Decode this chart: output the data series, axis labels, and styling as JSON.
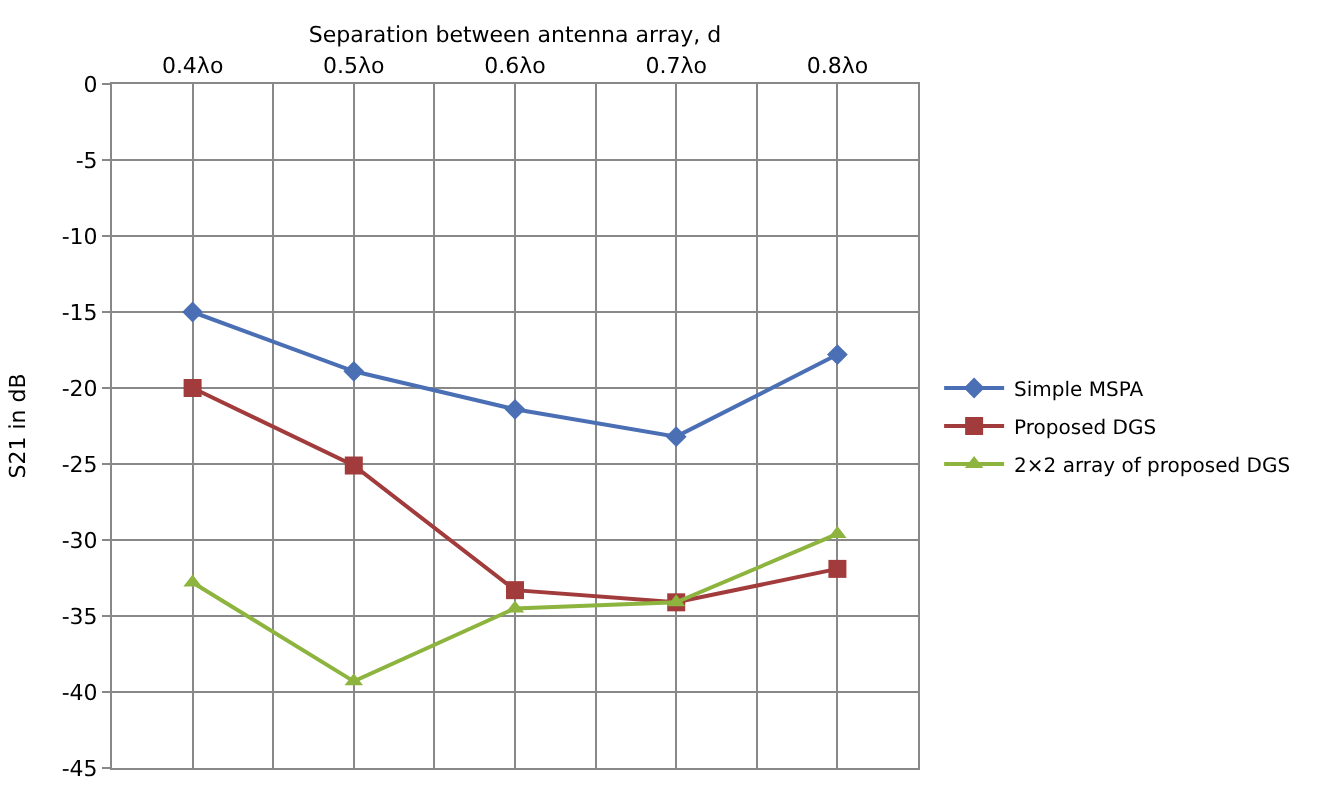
{
  "chart_data": {
    "type": "line",
    "xlabel": "Separation between antenna array, d",
    "ylabel": "S21 in dB",
    "categories": [
      "0.4λo",
      "0.5λo",
      "0.6λo",
      "0.7λo",
      "0.8λo"
    ],
    "series": [
      {
        "name": "Simple MSPA",
        "color": "#4a6fb5",
        "marker": "diamond",
        "values": [
          -15.0,
          -18.9,
          -21.4,
          -23.2,
          -17.8
        ]
      },
      {
        "name": "Proposed DGS",
        "color": "#a23b3b",
        "marker": "square",
        "values": [
          -20.0,
          -25.1,
          -33.3,
          -34.1,
          -31.9
        ]
      },
      {
        "name": "2×2 array of proposed DGS",
        "color": "#8db43e",
        "marker": "triangle",
        "values": [
          -32.8,
          -39.3,
          -34.5,
          -34.1,
          -29.6
        ]
      }
    ],
    "ylim": [
      -45,
      0
    ],
    "yticks": [
      0,
      -5,
      -10,
      -15,
      -20,
      -25,
      -30,
      -35,
      -40,
      -45
    ],
    "grid": true,
    "legend": "right",
    "line_style": "solid"
  }
}
